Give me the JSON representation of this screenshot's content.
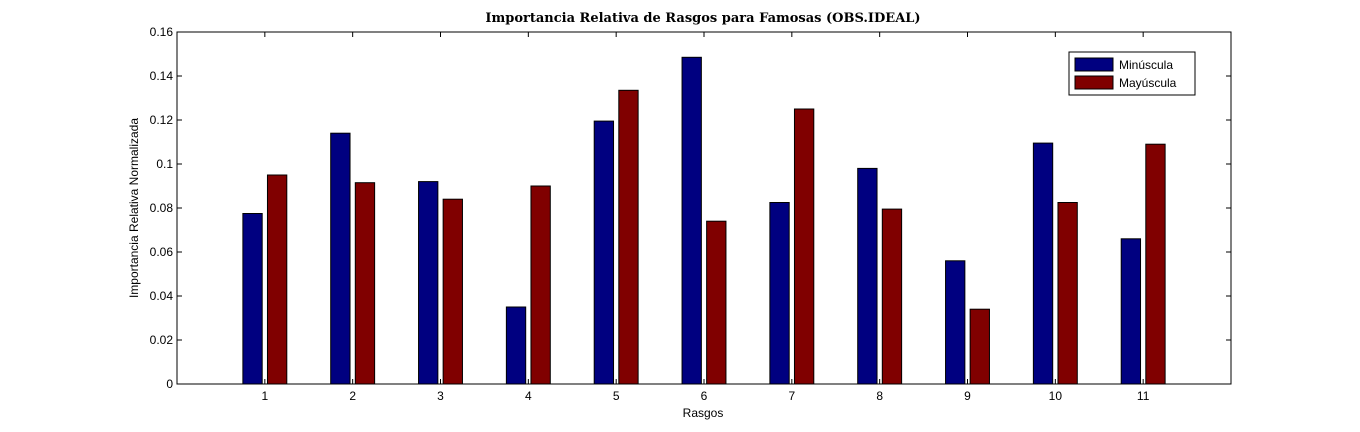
{
  "chart_data": {
    "type": "bar",
    "title": "Importancia Relativa de Rasgos para Famosas (OBS.IDEAL)",
    "xlabel": "Rasgos",
    "ylabel": "Importancia Relativa Normalizada",
    "categories": [
      "1",
      "2",
      "3",
      "4",
      "5",
      "6",
      "7",
      "8",
      "9",
      "10",
      "11"
    ],
    "series": [
      {
        "name": "Minúscula",
        "color": "#000080",
        "values": [
          0.0775,
          0.114,
          0.092,
          0.035,
          0.1195,
          0.1485,
          0.0825,
          0.098,
          0.056,
          0.1095,
          0.066
        ]
      },
      {
        "name": "Mayúscula",
        "color": "#800000",
        "values": [
          0.095,
          0.0915,
          0.084,
          0.09,
          0.1335,
          0.074,
          0.125,
          0.0795,
          0.034,
          0.0825,
          0.109
        ]
      }
    ],
    "ylim": [
      0,
      0.16
    ],
    "yticks": [
      "0",
      "0.02",
      "0.04",
      "0.06",
      "0.08",
      "0.1",
      "0.12",
      "0.14",
      "0.16"
    ],
    "xlim": [
      0,
      12
    ],
    "grid": false,
    "legend_position": "top-right"
  }
}
